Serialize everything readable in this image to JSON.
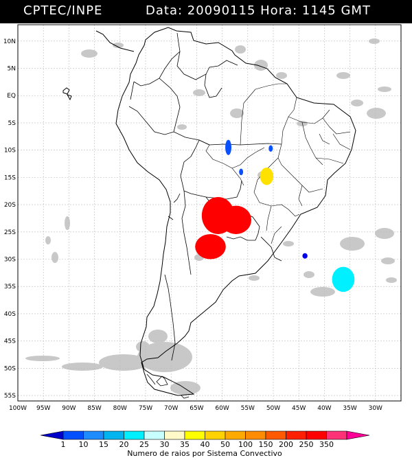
{
  "header": {
    "org": "CPTEC/INPE",
    "date_label": "Data:",
    "date_value": "20090115",
    "hour_label": "Hora:",
    "hour_value": "1145",
    "tz": "GMT"
  },
  "map": {
    "lon_range": [
      -100,
      -25
    ],
    "lat_range": [
      -56,
      13
    ],
    "lat_ticks": [
      {
        "value": 10,
        "label": "10N"
      },
      {
        "value": 5,
        "label": "5N"
      },
      {
        "value": 0,
        "label": "EQ"
      },
      {
        "value": -5,
        "label": "5S"
      },
      {
        "value": -10,
        "label": "10S"
      },
      {
        "value": -15,
        "label": "15S"
      },
      {
        "value": -20,
        "label": "20S"
      },
      {
        "value": -25,
        "label": "25S"
      },
      {
        "value": -30,
        "label": "30S"
      },
      {
        "value": -35,
        "label": "35S"
      },
      {
        "value": -40,
        "label": "40S"
      },
      {
        "value": -45,
        "label": "45S"
      },
      {
        "value": -50,
        "label": "50S"
      },
      {
        "value": -55,
        "label": "55S"
      }
    ],
    "lon_ticks": [
      {
        "value": -100,
        "label": "100W"
      },
      {
        "value": -95,
        "label": "95W"
      },
      {
        "value": -90,
        "label": "90W"
      },
      {
        "value": -85,
        "label": "85W"
      },
      {
        "value": -80,
        "label": "80W"
      },
      {
        "value": -75,
        "label": "75W"
      },
      {
        "value": -70,
        "label": "70W"
      },
      {
        "value": -65,
        "label": "65W"
      },
      {
        "value": -60,
        "label": "60W"
      },
      {
        "value": -55,
        "label": "55W"
      },
      {
        "value": -50,
        "label": "50W"
      },
      {
        "value": -45,
        "label": "45W"
      },
      {
        "value": -40,
        "label": "40W"
      },
      {
        "value": -35,
        "label": "35W"
      },
      {
        "value": -30,
        "label": "30W"
      }
    ],
    "systems": [
      {
        "lon": -60.8,
        "lat": -22.0,
        "rx_deg": 3.2,
        "ry_deg": 3.4,
        "color": "#ff0000"
      },
      {
        "lon": -57.3,
        "lat": -22.8,
        "rx_deg": 3.0,
        "ry_deg": 2.6,
        "color": "#ff0000"
      },
      {
        "lon": -62.3,
        "lat": -27.7,
        "rx_deg": 3.0,
        "ry_deg": 2.3,
        "color": "#ff0000"
      },
      {
        "lon": -51.3,
        "lat": -14.8,
        "rx_deg": 1.3,
        "ry_deg": 1.6,
        "color": "#ffe100"
      },
      {
        "lon": -58.8,
        "lat": -9.5,
        "rx_deg": 0.6,
        "ry_deg": 1.4,
        "color": "#0a50ff"
      },
      {
        "lon": -50.5,
        "lat": -9.7,
        "rx_deg": 0.4,
        "ry_deg": 0.6,
        "color": "#0a50ff"
      },
      {
        "lon": -56.3,
        "lat": -14.0,
        "rx_deg": 0.4,
        "ry_deg": 0.6,
        "color": "#0a50ff"
      },
      {
        "lon": -43.8,
        "lat": -29.4,
        "rx_deg": 0.5,
        "ry_deg": 0.5,
        "color": "#0000ee"
      },
      {
        "lon": -36.3,
        "lat": -33.7,
        "rx_deg": 2.2,
        "ry_deg": 2.3,
        "color": "#00f0ff"
      }
    ]
  },
  "colorbar": {
    "labels": [
      "1",
      "10",
      "15",
      "20",
      "25",
      "30",
      "35",
      "40",
      "50",
      "100",
      "150",
      "200",
      "250",
      "350"
    ],
    "colors": [
      "#0000c8",
      "#0050ff",
      "#1e8cff",
      "#00b4f0",
      "#00f0ff",
      "#c8ffff",
      "#fffac8",
      "#ffff00",
      "#ffd200",
      "#ffaa00",
      "#ff8c00",
      "#ff5a00",
      "#ff2000",
      "#ff0000",
      "#ff3278",
      "#ff0096"
    ],
    "title": "Numero de raios por Sistema Convectivo"
  }
}
